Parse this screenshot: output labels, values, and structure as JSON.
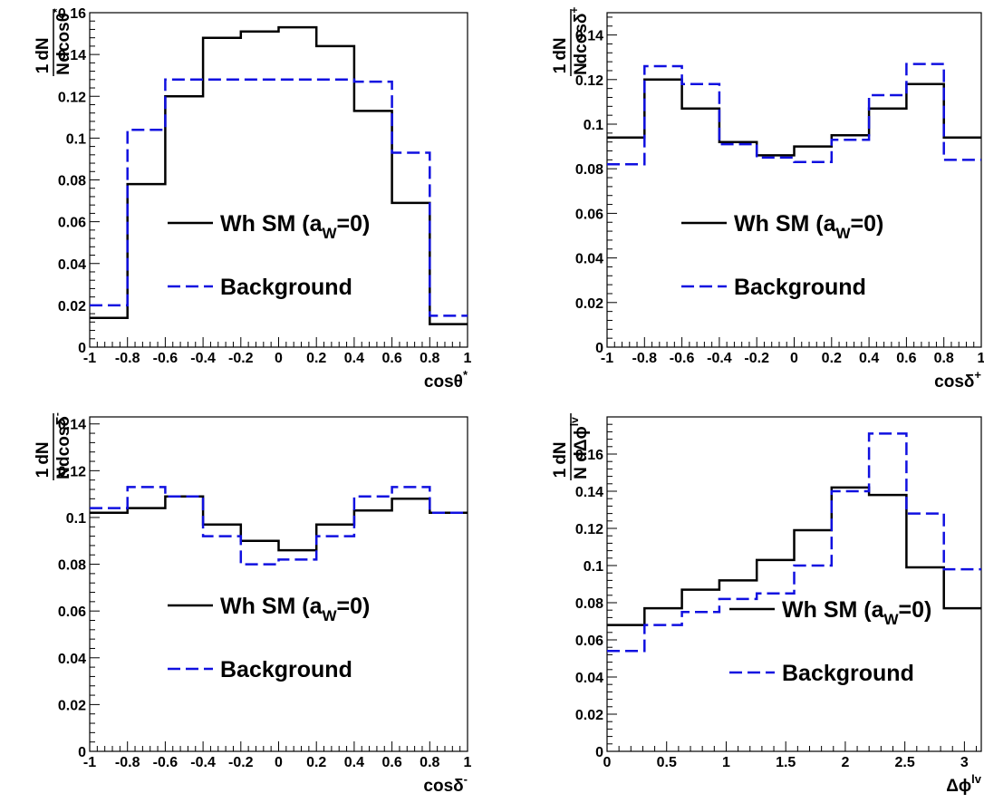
{
  "legend": {
    "signal_label": "Wh SM (a",
    "signal_sub": "W",
    "signal_tail": "=0)",
    "background_label": "Background"
  },
  "colors": {
    "signal": "#000000",
    "background": "#1010e0"
  },
  "chart_data": [
    {
      "type": "histogram",
      "xlabel": "cosθ",
      "xlabel_sup": "*",
      "ylabel_num": "dN",
      "ylabel_den": "dcosθ",
      "ylabel_den_sup": "*",
      "xlim": [
        -1,
        1
      ],
      "ylim": [
        0,
        0.16
      ],
      "xticks": [
        -1,
        -0.8,
        -0.6,
        -0.4,
        -0.2,
        0,
        0.2,
        0.4,
        0.6,
        0.8,
        1
      ],
      "xtick_labels": [
        "-1",
        "-0.8",
        "-0.6",
        "-0.4",
        "-0.2",
        "0",
        "0.2",
        "0.4",
        "0.6",
        "0.8",
        "1"
      ],
      "yticks": [
        0,
        0.02,
        0.04,
        0.06,
        0.08,
        0.1,
        0.12,
        0.14,
        0.16
      ],
      "ytick_labels": [
        "0",
        "0.02",
        "0.04",
        "0.06",
        "0.08",
        "0.1",
        "0.12",
        "0.14",
        "0.16"
      ],
      "legend_position": "lower-center",
      "bin_edges": [
        -1,
        -0.8,
        -0.6,
        -0.4,
        -0.2,
        0,
        0.2,
        0.4,
        0.6,
        0.8,
        1
      ],
      "series": [
        {
          "name": "Wh SM (a_W=0)",
          "style": "solid",
          "values": [
            0.014,
            0.078,
            0.12,
            0.148,
            0.151,
            0.153,
            0.144,
            0.113,
            0.069,
            0.011
          ]
        },
        {
          "name": "Background",
          "style": "dashed",
          "values": [
            0.02,
            0.104,
            0.128,
            0.128,
            0.128,
            0.128,
            0.128,
            0.127,
            0.093,
            0.015
          ]
        }
      ]
    },
    {
      "type": "histogram",
      "xlabel": "cosδ",
      "xlabel_sup": "+",
      "ylabel_num": "dN",
      "ylabel_den": "dcosδ",
      "ylabel_den_sup": "+",
      "xlim": [
        -1,
        1
      ],
      "ylim": [
        0,
        0.15
      ],
      "xticks": [
        -1,
        -0.8,
        -0.6,
        -0.4,
        -0.2,
        0,
        0.2,
        0.4,
        0.6,
        0.8,
        1
      ],
      "xtick_labels": [
        "-1",
        "-0.8",
        "-0.6",
        "-0.4",
        "-0.2",
        "0",
        "0.2",
        "0.4",
        "0.6",
        "0.8",
        "1"
      ],
      "yticks": [
        0,
        0.02,
        0.04,
        0.06,
        0.08,
        0.1,
        0.12,
        0.14
      ],
      "ytick_labels": [
        "0",
        "0.02",
        "0.04",
        "0.06",
        "0.08",
        "0.1",
        "0.12",
        "0.14"
      ],
      "legend_position": "lower-right",
      "bin_edges": [
        -1,
        -0.8,
        -0.6,
        -0.4,
        -0.2,
        0,
        0.2,
        0.4,
        0.6,
        0.8,
        1
      ],
      "series": [
        {
          "name": "Wh SM (a_W=0)",
          "style": "solid",
          "values": [
            0.094,
            0.12,
            0.107,
            0.092,
            0.086,
            0.09,
            0.095,
            0.107,
            0.118,
            0.094
          ]
        },
        {
          "name": "Background",
          "style": "dashed",
          "values": [
            0.082,
            0.126,
            0.118,
            0.091,
            0.085,
            0.083,
            0.093,
            0.113,
            0.127,
            0.084
          ]
        }
      ]
    },
    {
      "type": "histogram",
      "xlabel": "cosδ",
      "xlabel_sup": "-",
      "ylabel_num": "dN",
      "ylabel_den": "dcosδ",
      "ylabel_den_sup": "-",
      "xlim": [
        -1,
        1
      ],
      "ylim": [
        0,
        0.143
      ],
      "xticks": [
        -1,
        -0.8,
        -0.6,
        -0.4,
        -0.2,
        0,
        0.2,
        0.4,
        0.6,
        0.8,
        1
      ],
      "xtick_labels": [
        "-1",
        "-0.8",
        "-0.6",
        "-0.4",
        "-0.2",
        "0",
        "0.2",
        "0.4",
        "0.6",
        "0.8",
        "1"
      ],
      "yticks": [
        0,
        0.02,
        0.04,
        0.06,
        0.08,
        0.1,
        0.12,
        0.14
      ],
      "ytick_labels": [
        "0",
        "0.02",
        "0.04",
        "0.06",
        "0.08",
        "0.1",
        "0.12",
        "0.14"
      ],
      "legend_position": "lower-center",
      "bin_edges": [
        -1,
        -0.8,
        -0.6,
        -0.4,
        -0.2,
        0,
        0.2,
        0.4,
        0.6,
        0.8,
        1
      ],
      "series": [
        {
          "name": "Wh SM (a_W=0)",
          "style": "solid",
          "values": [
            0.102,
            0.104,
            0.109,
            0.097,
            0.09,
            0.086,
            0.097,
            0.103,
            0.108,
            0.102
          ]
        },
        {
          "name": "Background",
          "style": "dashed",
          "values": [
            0.104,
            0.113,
            0.109,
            0.092,
            0.08,
            0.082,
            0.092,
            0.109,
            0.113,
            0.102
          ]
        }
      ]
    },
    {
      "type": "histogram",
      "xlabel": "Δϕ",
      "xlabel_sup": "lv",
      "ylabel_num": "dN",
      "ylabel_den": "dΔϕ",
      "ylabel_den_sup": "lv",
      "xlim": [
        0,
        3.1416
      ],
      "ylim": [
        0,
        0.18
      ],
      "xticks": [
        0,
        0.5,
        1,
        1.5,
        2,
        2.5,
        3
      ],
      "xtick_labels": [
        "0",
        "0.5",
        "1",
        "1.5",
        "2",
        "2.5",
        "3"
      ],
      "yticks": [
        0,
        0.02,
        0.04,
        0.06,
        0.08,
        0.1,
        0.12,
        0.14,
        0.16
      ],
      "ytick_labels": [
        "0",
        "0.02",
        "0.04",
        "0.06",
        "0.08",
        "0.1",
        "0.12",
        "0.14",
        "0.16"
      ],
      "legend_position": "lower-right",
      "bin_edges": [
        0,
        0.3142,
        0.6283,
        0.9425,
        1.2566,
        1.5708,
        1.885,
        2.1991,
        2.5133,
        2.8274,
        3.1416
      ],
      "series": [
        {
          "name": "Wh SM (a_W=0)",
          "style": "solid",
          "values": [
            0.068,
            0.077,
            0.087,
            0.092,
            0.103,
            0.119,
            0.142,
            0.138,
            0.099,
            0.077
          ]
        },
        {
          "name": "Background",
          "style": "dashed",
          "values": [
            0.054,
            0.068,
            0.075,
            0.082,
            0.085,
            0.1,
            0.14,
            0.171,
            0.128,
            0.098
          ]
        }
      ]
    }
  ]
}
